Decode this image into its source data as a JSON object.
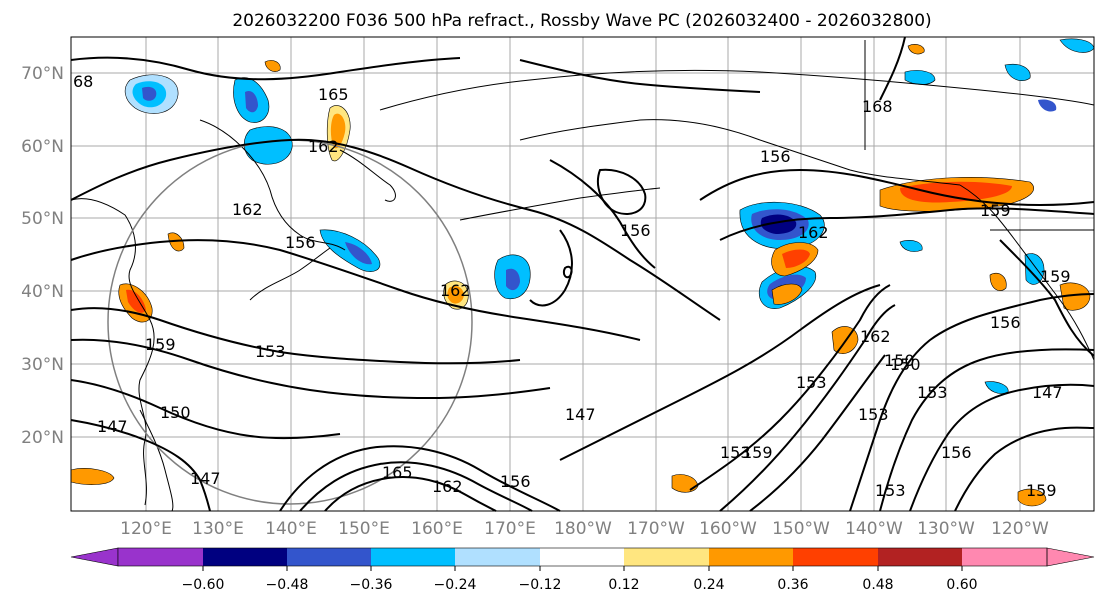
{
  "title": "2026032200 F036 500 hPa refract., Rossby Wave PC (2026032400 - 2026032800)",
  "lat_labels": [
    "70°N",
    "60°N",
    "50°N",
    "40°N",
    "30°N",
    "20°N"
  ],
  "lon_labels": [
    "120°E",
    "130°E",
    "140°E",
    "150°E",
    "160°E",
    "170°E",
    "180°W",
    "170°W",
    "160°W",
    "150°W",
    "140°W",
    "130°W",
    "120°W"
  ],
  "colorbar": {
    "ticks": [
      "−0.60",
      "−0.48",
      "−0.36",
      "−0.24",
      "−0.12",
      "0.12",
      "0.24",
      "0.36",
      "0.48",
      "0.60"
    ],
    "colors": [
      "#9933cc",
      "#000080",
      "#3355cc",
      "#00bfff",
      "#b0e0ff",
      "#ffffff",
      "#ffe680",
      "#ff9900",
      "#ff4000",
      "#b22222",
      "#ff88b0"
    ]
  },
  "contour_labels": [
    "68",
    "165",
    "162",
    "168",
    "162",
    "156",
    "162",
    "159",
    "156",
    "159",
    "162",
    "156",
    "159",
    "153",
    "150",
    "153",
    "147",
    "147",
    "150",
    "147",
    "147",
    "153",
    "153",
    "156",
    "162",
    "165",
    "156",
    "153",
    "159",
    "159",
    "156",
    "162",
    "150",
    "153"
  ]
}
